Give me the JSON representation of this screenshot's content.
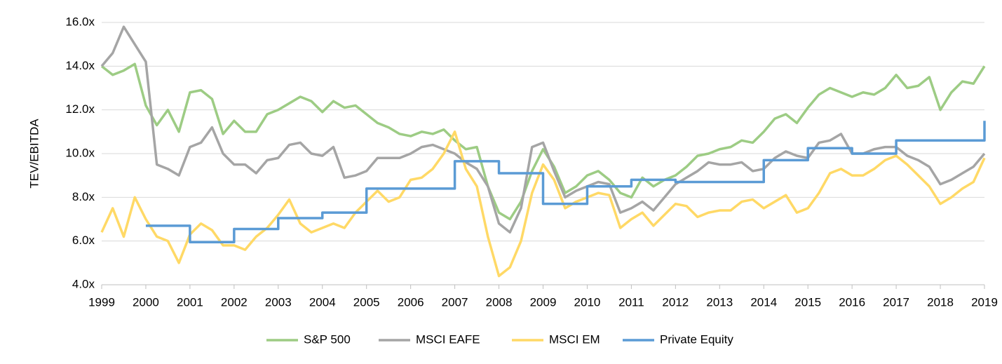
{
  "chart_data": {
    "type": "line",
    "ylabel": "TEV/EBITDA",
    "x": [
      1999,
      1999.25,
      1999.5,
      1999.75,
      2000,
      2000.25,
      2000.5,
      2000.75,
      2001,
      2001.25,
      2001.5,
      2001.75,
      2002,
      2002.25,
      2002.5,
      2002.75,
      2003,
      2003.25,
      2003.5,
      2003.75,
      2004,
      2004.25,
      2004.5,
      2004.75,
      2005,
      2005.25,
      2005.5,
      2005.75,
      2006,
      2006.25,
      2006.5,
      2006.75,
      2007,
      2007.25,
      2007.5,
      2007.75,
      2008,
      2008.25,
      2008.5,
      2008.75,
      2009,
      2009.25,
      2009.5,
      2009.75,
      2010,
      2010.25,
      2010.5,
      2010.75,
      2011,
      2011.25,
      2011.5,
      2011.75,
      2012,
      2012.25,
      2012.5,
      2012.75,
      2013,
      2013.25,
      2013.5,
      2013.75,
      2014,
      2014.25,
      2014.5,
      2014.75,
      2015,
      2015.25,
      2015.5,
      2015.75,
      2016,
      2016.25,
      2016.5,
      2016.75,
      2017,
      2017.25,
      2017.5,
      2017.75,
      2018,
      2018.25,
      2018.5,
      2018.75,
      2019
    ],
    "series": [
      {
        "name": "S&P 500",
        "color": "#9dcc84",
        "values": [
          14.0,
          13.6,
          13.8,
          14.1,
          12.2,
          11.3,
          12.0,
          11.0,
          12.8,
          12.9,
          12.5,
          10.9,
          11.5,
          11.0,
          11.0,
          11.8,
          12.0,
          12.3,
          12.6,
          12.4,
          11.9,
          12.4,
          12.1,
          12.2,
          11.8,
          11.4,
          11.2,
          10.9,
          10.8,
          11.0,
          10.9,
          11.1,
          10.6,
          10.2,
          10.3,
          8.5,
          7.3,
          7.0,
          7.8,
          9.2,
          10.2,
          9.4,
          8.2,
          8.5,
          9.0,
          9.2,
          8.8,
          8.2,
          8.0,
          8.9,
          8.5,
          8.8,
          9.0,
          9.4,
          9.9,
          10.0,
          10.2,
          10.3,
          10.6,
          10.5,
          11.0,
          11.6,
          11.8,
          11.4,
          12.1,
          12.7,
          13.0,
          12.8,
          12.6,
          12.8,
          12.7,
          13.0,
          13.6,
          13.0,
          13.1,
          13.5,
          12.0,
          12.8,
          13.3,
          13.2,
          14.0
        ]
      },
      {
        "name": "MSCI EAFE",
        "color": "#a5a5a5",
        "values": [
          14.0,
          14.6,
          15.8,
          15.0,
          14.2,
          9.5,
          9.3,
          9.0,
          10.3,
          10.5,
          11.2,
          10.0,
          9.5,
          9.5,
          9.1,
          9.7,
          9.8,
          10.4,
          10.5,
          10.0,
          9.9,
          10.3,
          8.9,
          9.0,
          9.2,
          9.8,
          9.8,
          9.8,
          10.0,
          10.3,
          10.4,
          10.2,
          10.0,
          9.6,
          9.3,
          8.5,
          6.8,
          6.4,
          7.5,
          10.3,
          10.5,
          9.2,
          8.0,
          8.3,
          8.5,
          8.7,
          8.6,
          7.3,
          7.5,
          7.8,
          7.4,
          8.0,
          8.6,
          8.9,
          9.2,
          9.6,
          9.5,
          9.5,
          9.6,
          9.2,
          9.3,
          9.8,
          10.1,
          9.9,
          9.8,
          10.5,
          10.6,
          10.9,
          10.0,
          10.0,
          10.2,
          10.3,
          10.3,
          9.9,
          9.7,
          9.4,
          8.6,
          8.8,
          9.1,
          9.4,
          10.0
        ]
      },
      {
        "name": "MSCI EM",
        "color": "#ffd966",
        "values": [
          6.4,
          7.5,
          6.2,
          8.0,
          7.0,
          6.2,
          6.0,
          5.0,
          6.3,
          6.8,
          6.5,
          5.8,
          5.8,
          5.6,
          6.2,
          6.6,
          7.2,
          7.9,
          6.8,
          6.4,
          6.6,
          6.8,
          6.6,
          7.3,
          7.8,
          8.3,
          7.8,
          8.0,
          8.8,
          8.9,
          9.3,
          10.0,
          11.0,
          9.3,
          8.5,
          6.2,
          4.4,
          4.8,
          6.0,
          8.2,
          9.5,
          8.8,
          7.5,
          7.8,
          8.0,
          8.2,
          8.1,
          6.6,
          7.0,
          7.3,
          6.7,
          7.2,
          7.7,
          7.6,
          7.1,
          7.3,
          7.4,
          7.4,
          7.8,
          7.9,
          7.5,
          7.8,
          8.1,
          7.3,
          7.5,
          8.2,
          9.1,
          9.3,
          9.0,
          9.0,
          9.3,
          9.7,
          9.9,
          9.5,
          9.0,
          8.5,
          7.7,
          8.0,
          8.4,
          8.7,
          9.8
        ]
      },
      {
        "name": "Private Equity",
        "color": "#5b9bd5",
        "x": [
          2000,
          2001,
          2001,
          2002,
          2002,
          2003,
          2003,
          2004,
          2004,
          2005,
          2005,
          2007,
          2007,
          2008,
          2008,
          2009,
          2009,
          2010,
          2010,
          2011,
          2011,
          2012,
          2012,
          2014,
          2014,
          2015,
          2015,
          2016,
          2016,
          2017,
          2017,
          2019,
          2019
        ],
        "values": [
          6.7,
          6.7,
          5.95,
          5.95,
          6.55,
          6.55,
          7.05,
          7.05,
          7.3,
          7.3,
          8.4,
          8.4,
          9.65,
          9.65,
          9.1,
          9.1,
          7.7,
          7.7,
          8.5,
          8.5,
          8.8,
          8.8,
          8.7,
          8.7,
          9.7,
          9.7,
          10.25,
          10.25,
          10.0,
          10.0,
          10.6,
          10.6,
          11.5
        ]
      }
    ],
    "xlim": [
      1999,
      2019
    ],
    "xticks": [
      1999,
      2000,
      2001,
      2002,
      2003,
      2004,
      2005,
      2006,
      2007,
      2008,
      2009,
      2010,
      2011,
      2012,
      2013,
      2014,
      2015,
      2016,
      2017,
      2018,
      2019
    ],
    "ylim": [
      4,
      16
    ],
    "yticks": [
      {
        "value": 4,
        "label": "4.0x"
      },
      {
        "value": 6,
        "label": "6.0x"
      },
      {
        "value": 8,
        "label": "8.0x"
      },
      {
        "value": 10,
        "label": "10.0x"
      },
      {
        "value": 12,
        "label": "12.0x"
      },
      {
        "value": 14,
        "label": "14.0x"
      },
      {
        "value": 16,
        "label": "16.0x"
      }
    ],
    "grid": true,
    "legend": "bottom"
  }
}
